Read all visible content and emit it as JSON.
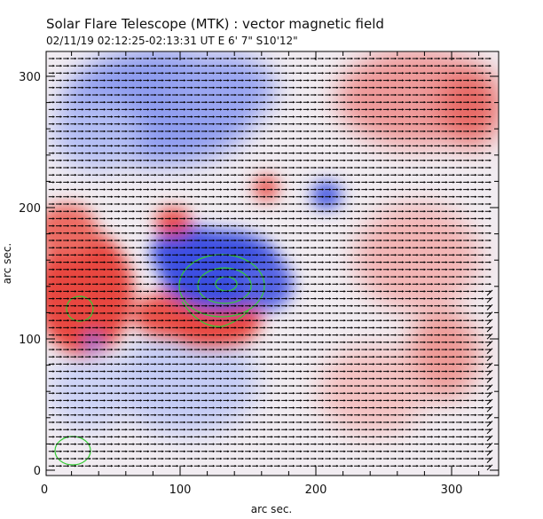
{
  "header": {
    "title": "Solar Flare Telescope (MTK) : vector magnetic field",
    "subtitle": "02/11/19   02:12:25-02:13:31 UT     E 6' 7\"   S10'12\""
  },
  "chart_data": {
    "type": "heatmap",
    "xlabel": "arc sec.",
    "ylabel": "arc sec.",
    "xlim": [
      0,
      330
    ],
    "ylim": [
      0,
      320
    ],
    "xticks": [
      "0",
      "100",
      "200",
      "300"
    ],
    "yticks": [
      "0",
      "100",
      "200",
      "300"
    ],
    "grid": false,
    "colors": {
      "positive": "#e8463f",
      "negative": "#3a4fe0",
      "neutral": "#f2eef2",
      "vector": "#000000",
      "contour": "#33cc33"
    }
  }
}
